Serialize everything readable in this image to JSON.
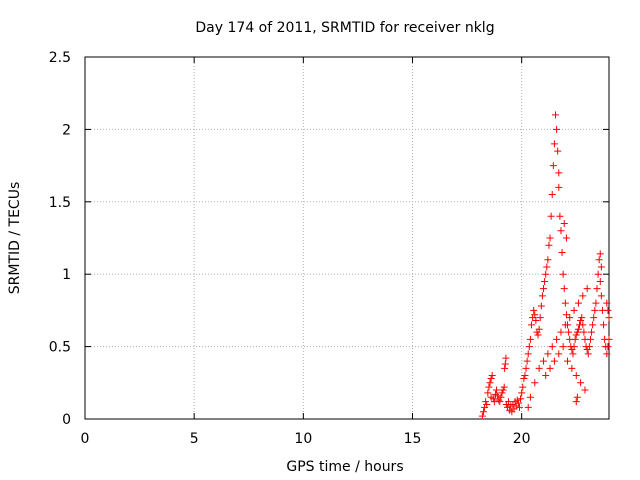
{
  "chart_data": {
    "type": "scatter",
    "title": "Day 174 of 2011, SRMTID for receiver nklg",
    "xlabel": "GPS time / hours",
    "ylabel": "SRMTID / TECUs",
    "xlim": [
      0,
      24
    ],
    "ylim": [
      0,
      2.5
    ],
    "x_ticks": [
      0,
      5,
      10,
      15,
      20
    ],
    "x_tick_labels": [
      "0",
      "5",
      "10",
      "15",
      "20"
    ],
    "y_ticks": [
      0,
      0.5,
      1,
      1.5,
      2,
      2.5
    ],
    "y_tick_labels": [
      "0",
      "0.5",
      "1",
      "1.5",
      "2",
      "2.5"
    ],
    "grid": true,
    "marker": "plus",
    "color": "#ff0000",
    "points": [
      [
        18.2,
        0.02
      ],
      [
        18.25,
        0.05
      ],
      [
        18.3,
        0.08
      ],
      [
        18.35,
        0.12
      ],
      [
        18.4,
        0.1
      ],
      [
        18.45,
        0.18
      ],
      [
        18.5,
        0.22
      ],
      [
        18.55,
        0.25
      ],
      [
        18.6,
        0.28
      ],
      [
        18.65,
        0.3
      ],
      [
        18.6,
        0.15
      ],
      [
        18.7,
        0.14
      ],
      [
        18.75,
        0.12
      ],
      [
        18.8,
        0.17
      ],
      [
        18.85,
        0.2
      ],
      [
        18.9,
        0.16
      ],
      [
        18.95,
        0.13
      ],
      [
        19.0,
        0.12
      ],
      [
        19.05,
        0.15
      ],
      [
        19.1,
        0.18
      ],
      [
        19.15,
        0.2
      ],
      [
        19.2,
        0.22
      ],
      [
        19.22,
        0.35
      ],
      [
        19.25,
        0.38
      ],
      [
        19.28,
        0.42
      ],
      [
        19.3,
        0.1
      ],
      [
        19.35,
        0.08
      ],
      [
        19.4,
        0.12
      ],
      [
        19.45,
        0.06
      ],
      [
        19.5,
        0.09
      ],
      [
        19.55,
        0.05
      ],
      [
        19.6,
        0.1
      ],
      [
        19.65,
        0.07
      ],
      [
        19.7,
        0.12
      ],
      [
        19.75,
        0.09
      ],
      [
        19.8,
        0.13
      ],
      [
        19.85,
        0.11
      ],
      [
        19.9,
        0.08
      ],
      [
        19.95,
        0.14
      ],
      [
        20.0,
        0.18
      ],
      [
        20.05,
        0.22
      ],
      [
        20.1,
        0.28
      ],
      [
        20.15,
        0.3
      ],
      [
        20.2,
        0.35
      ],
      [
        20.25,
        0.4
      ],
      [
        20.3,
        0.45
      ],
      [
        20.35,
        0.5
      ],
      [
        20.4,
        0.55
      ],
      [
        20.45,
        0.65
      ],
      [
        20.5,
        0.7
      ],
      [
        20.55,
        0.75
      ],
      [
        20.6,
        0.72
      ],
      [
        20.65,
        0.68
      ],
      [
        20.7,
        0.6
      ],
      [
        20.75,
        0.58
      ],
      [
        20.8,
        0.62
      ],
      [
        20.85,
        0.7
      ],
      [
        20.9,
        0.78
      ],
      [
        20.95,
        0.85
      ],
      [
        21.0,
        0.9
      ],
      [
        21.05,
        0.95
      ],
      [
        21.1,
        1.0
      ],
      [
        21.15,
        1.05
      ],
      [
        21.2,
        1.1
      ],
      [
        21.25,
        1.2
      ],
      [
        21.3,
        1.25
      ],
      [
        21.35,
        1.4
      ],
      [
        21.4,
        1.55
      ],
      [
        21.45,
        1.75
      ],
      [
        21.5,
        1.9
      ],
      [
        21.55,
        2.1
      ],
      [
        21.6,
        2.0
      ],
      [
        21.65,
        1.85
      ],
      [
        21.7,
        1.6
      ],
      [
        21.75,
        1.4
      ],
      [
        21.8,
        1.3
      ],
      [
        21.85,
        1.15
      ],
      [
        21.9,
        1.0
      ],
      [
        21.95,
        0.9
      ],
      [
        22.0,
        0.8
      ],
      [
        22.05,
        0.72
      ],
      [
        22.1,
        0.65
      ],
      [
        22.15,
        0.6
      ],
      [
        22.2,
        0.55
      ],
      [
        22.25,
        0.5
      ],
      [
        22.3,
        0.48
      ],
      [
        22.35,
        0.45
      ],
      [
        22.4,
        0.5
      ],
      [
        22.45,
        0.55
      ],
      [
        22.5,
        0.58
      ],
      [
        22.55,
        0.6
      ],
      [
        22.6,
        0.62
      ],
      [
        22.65,
        0.65
      ],
      [
        22.7,
        0.68
      ],
      [
        22.75,
        0.7
      ],
      [
        22.8,
        0.65
      ],
      [
        22.85,
        0.6
      ],
      [
        22.9,
        0.55
      ],
      [
        22.95,
        0.5
      ],
      [
        23.0,
        0.48
      ],
      [
        23.05,
        0.45
      ],
      [
        23.1,
        0.5
      ],
      [
        23.15,
        0.55
      ],
      [
        23.2,
        0.6
      ],
      [
        23.25,
        0.65
      ],
      [
        23.3,
        0.7
      ],
      [
        23.35,
        0.75
      ],
      [
        23.4,
        0.8
      ],
      [
        23.45,
        0.9
      ],
      [
        23.5,
        1.0
      ],
      [
        23.55,
        1.1
      ],
      [
        23.6,
        0.95
      ],
      [
        23.65,
        0.85
      ],
      [
        23.7,
        0.75
      ],
      [
        23.75,
        0.65
      ],
      [
        23.8,
        0.55
      ],
      [
        23.85,
        0.5
      ],
      [
        23.9,
        0.45
      ],
      [
        23.95,
        0.5
      ],
      [
        24.0,
        0.55
      ],
      [
        20.3,
        0.08
      ],
      [
        20.4,
        0.15
      ],
      [
        20.6,
        0.25
      ],
      [
        20.8,
        0.35
      ],
      [
        21.0,
        0.4
      ],
      [
        21.2,
        0.45
      ],
      [
        21.4,
        0.5
      ],
      [
        21.6,
        0.55
      ],
      [
        21.8,
        0.6
      ],
      [
        22.0,
        0.65
      ],
      [
        22.2,
        0.7
      ],
      [
        22.4,
        0.75
      ],
      [
        22.6,
        0.8
      ],
      [
        22.8,
        0.85
      ],
      [
        23.0,
        0.9
      ],
      [
        21.1,
        0.3
      ],
      [
        21.3,
        0.35
      ],
      [
        21.5,
        0.4
      ],
      [
        21.7,
        0.45
      ],
      [
        21.9,
        0.5
      ],
      [
        22.1,
        0.4
      ],
      [
        22.3,
        0.35
      ],
      [
        22.5,
        0.3
      ],
      [
        22.7,
        0.25
      ],
      [
        22.9,
        0.2
      ],
      [
        22.5,
        0.12
      ],
      [
        22.55,
        0.15
      ],
      [
        21.95,
        1.35
      ],
      [
        22.05,
        1.25
      ],
      [
        21.7,
        1.7
      ],
      [
        23.6,
        1.14
      ],
      [
        23.65,
        1.05
      ],
      [
        23.9,
        0.8
      ],
      [
        23.95,
        0.75
      ],
      [
        24.0,
        0.7
      ]
    ]
  }
}
